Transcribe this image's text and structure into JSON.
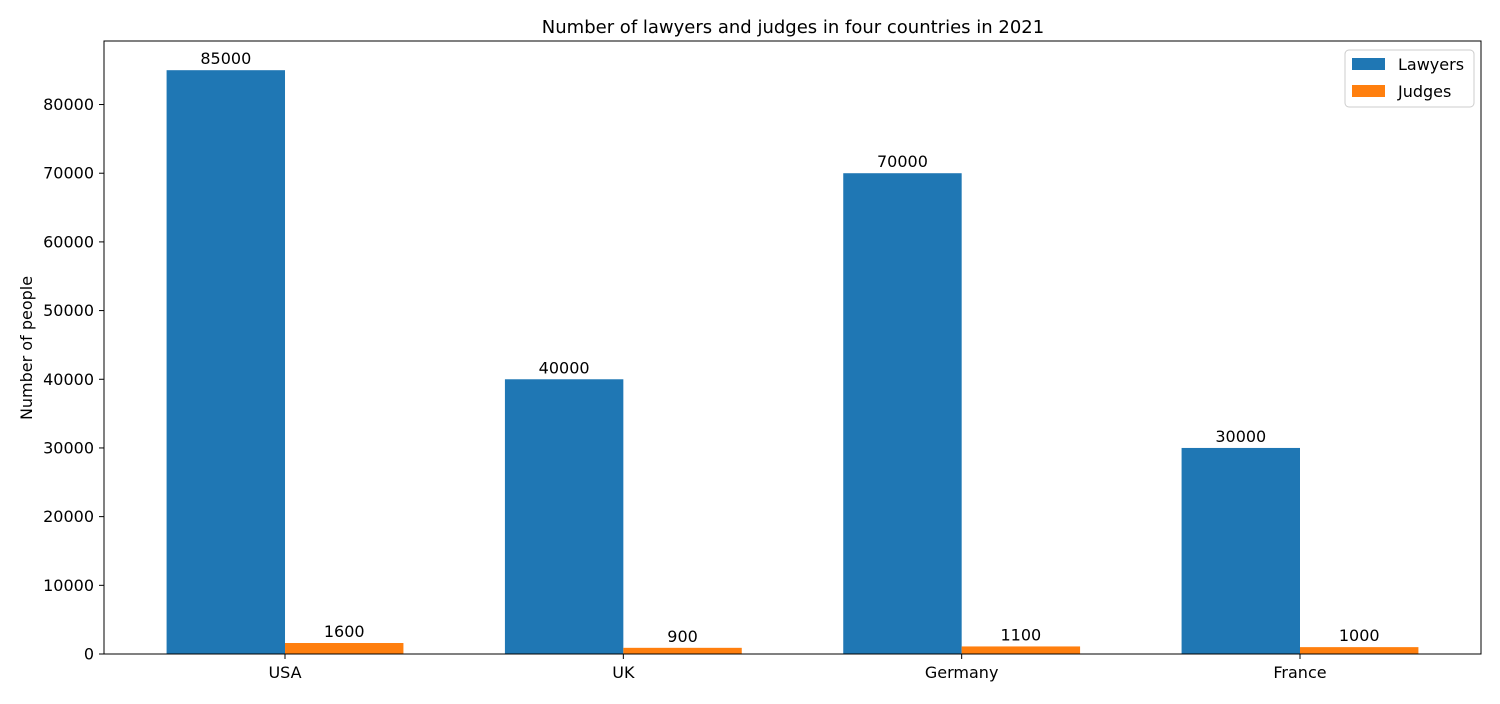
{
  "chart_data": {
    "type": "bar",
    "title": "Number of lawyers and judges in four countries in 2021",
    "xlabel": "",
    "ylabel": "Number of people",
    "categories": [
      "USA",
      "UK",
      "Germany",
      "France"
    ],
    "series": [
      {
        "name": "Lawyers",
        "values": [
          85000,
          40000,
          70000,
          30000
        ],
        "color": "#1f77b4"
      },
      {
        "name": "Judges",
        "values": [
          1600,
          900,
          1100,
          1000
        ],
        "color": "#ff7f0e"
      }
    ],
    "ylim": [
      0,
      89250
    ],
    "yticks": [
      0,
      10000,
      20000,
      30000,
      40000,
      50000,
      60000,
      70000,
      80000
    ],
    "grid": false,
    "legend_position": "top-right",
    "data_labels": true
  }
}
